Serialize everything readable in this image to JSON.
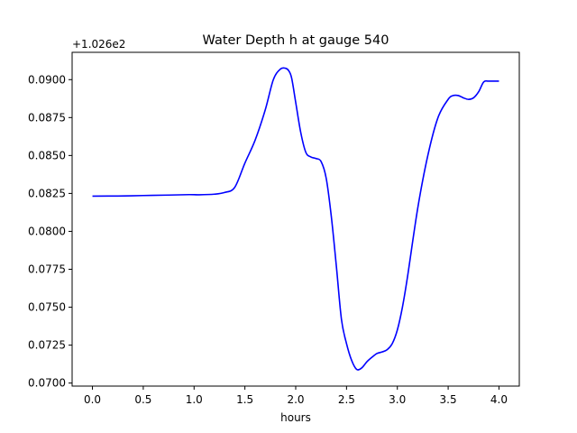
{
  "chart_data": {
    "type": "line",
    "title": "Water Depth h at gauge 540",
    "xlabel": "hours",
    "ylabel": "",
    "offset_text": "+1.026e2",
    "y_offset": 102.6,
    "xlim": [
      -0.2,
      4.2
    ],
    "ylim": [
      0.0698,
      0.0918
    ],
    "xticks": [
      0.0,
      0.5,
      1.0,
      1.5,
      2.0,
      2.5,
      3.0,
      3.5,
      4.0
    ],
    "xtick_labels": [
      "0.0",
      "0.5",
      "1.0",
      "1.5",
      "2.0",
      "2.5",
      "3.0",
      "3.5",
      "4.0"
    ],
    "yticks": [
      0.07,
      0.0725,
      0.075,
      0.0775,
      0.08,
      0.0825,
      0.085,
      0.0875,
      0.09
    ],
    "ytick_labels": [
      "0.0700",
      "0.0725",
      "0.0750",
      "0.0775",
      "0.0800",
      "0.0825",
      "0.0850",
      "0.0875",
      "0.0900"
    ],
    "grid": false,
    "colors": {
      "series": "#0000ff",
      "axes": "#000000",
      "background": "#ffffff"
    },
    "series": [
      {
        "x": [
          0.0,
          0.25,
          0.5,
          0.75,
          0.95,
          1.05,
          1.2,
          1.3,
          1.4,
          1.5,
          1.6,
          1.7,
          1.78,
          1.85,
          1.9,
          1.93,
          1.96,
          2.0,
          2.05,
          2.1,
          2.15,
          2.2,
          2.25,
          2.3,
          2.35,
          2.4,
          2.45,
          2.5,
          2.55,
          2.6,
          2.65,
          2.7,
          2.75,
          2.8,
          2.85,
          2.9,
          2.95,
          3.0,
          3.05,
          3.1,
          3.2,
          3.3,
          3.4,
          3.5,
          3.55,
          3.6,
          3.65,
          3.7,
          3.75,
          3.8,
          3.85,
          3.9,
          4.0
        ],
        "y": [
          0.08232,
          0.08233,
          0.08236,
          0.08239,
          0.08242,
          0.08241,
          0.08245,
          0.08256,
          0.0829,
          0.0845,
          0.086,
          0.088,
          0.09,
          0.0907,
          0.09075,
          0.0906,
          0.0901,
          0.0885,
          0.0865,
          0.0852,
          0.0849,
          0.0848,
          0.0846,
          0.0835,
          0.081,
          0.0777,
          0.0742,
          0.0726,
          0.0715,
          0.0709,
          0.071,
          0.0714,
          0.0717,
          0.07195,
          0.07205,
          0.0722,
          0.0726,
          0.0735,
          0.075,
          0.077,
          0.0815,
          0.085,
          0.0875,
          0.0887,
          0.08895,
          0.08895,
          0.0888,
          0.0887,
          0.0888,
          0.0892,
          0.08985,
          0.0899,
          0.0899
        ]
      }
    ]
  }
}
